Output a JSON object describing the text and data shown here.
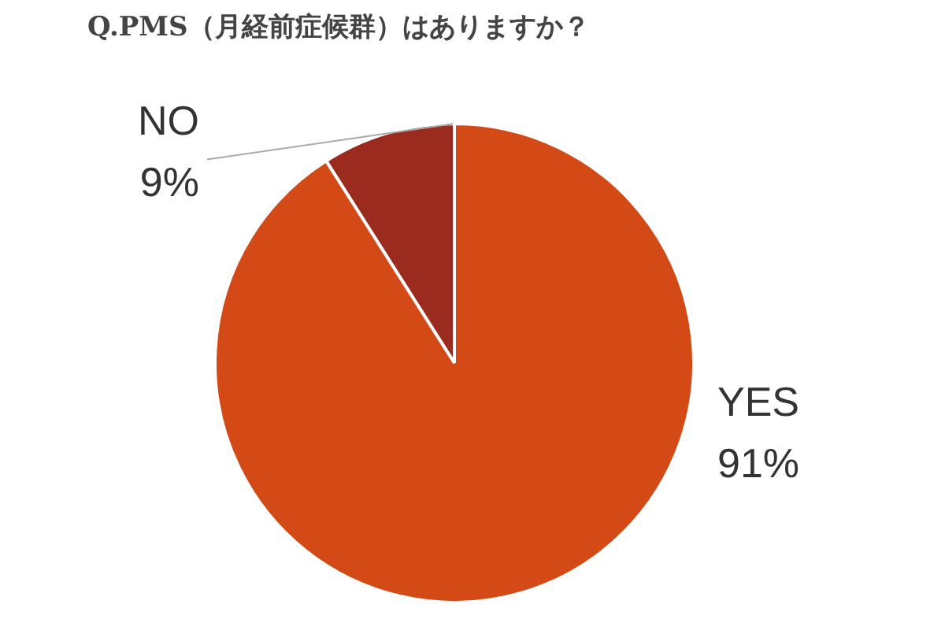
{
  "chart_data": {
    "type": "pie",
    "title": "Q.PMS（月経前症候群）はありますか？",
    "categories": [
      "NO",
      "YES"
    ],
    "values": [
      9,
      91
    ],
    "colors": [
      "#9b2b1f",
      "#d44a17"
    ],
    "value_labels": [
      "9%",
      "91%"
    ]
  }
}
